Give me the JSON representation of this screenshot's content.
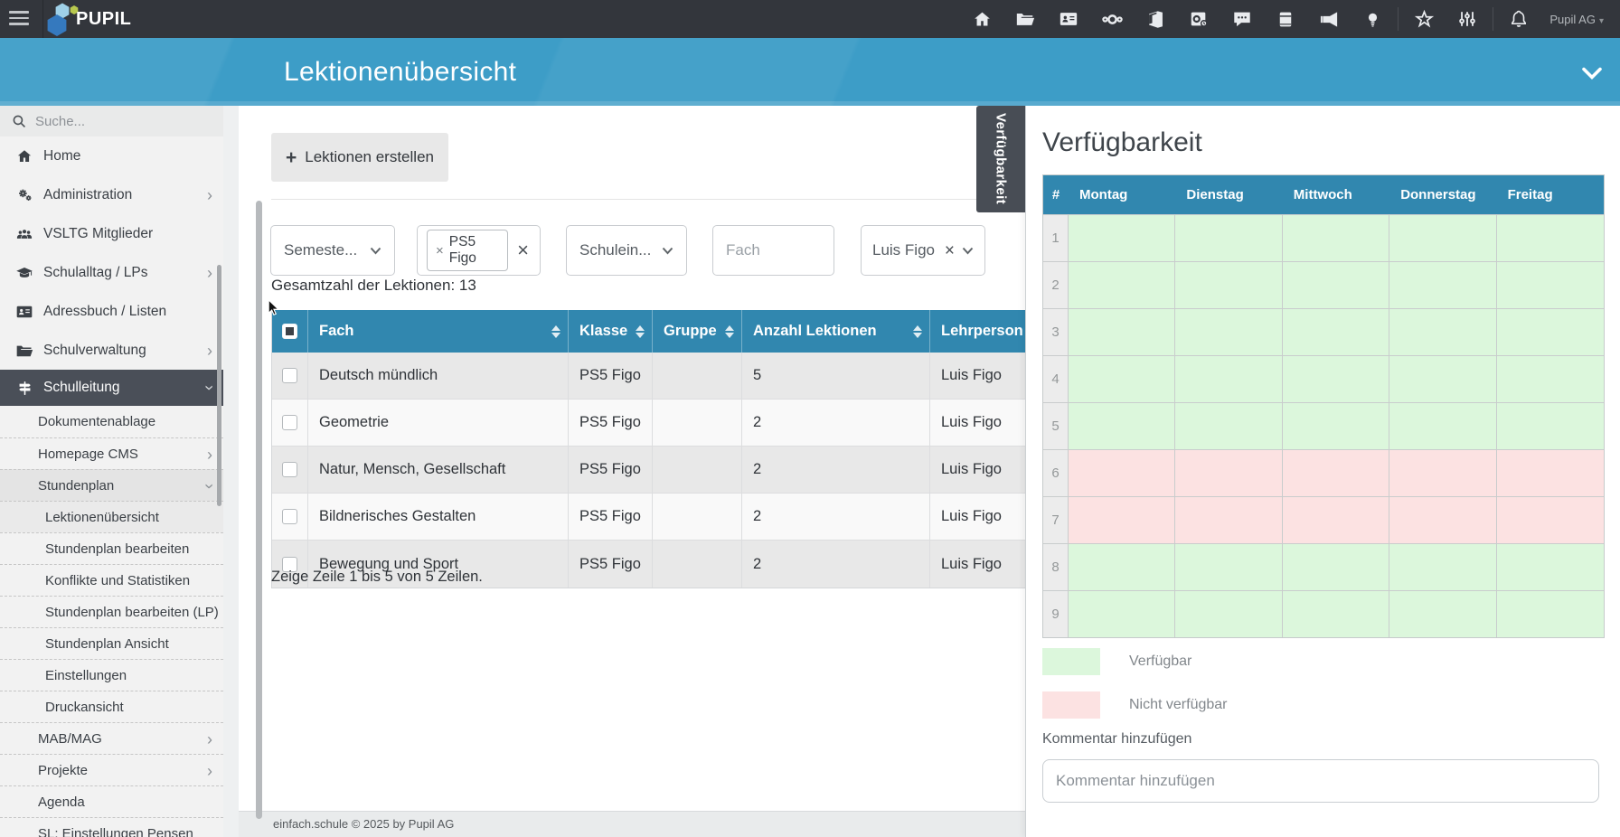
{
  "topbar": {
    "brand": "PUPIL",
    "account_label": "Pupil AG",
    "icons": [
      "hamburger-icon",
      "home-icon",
      "folder-icon",
      "contacts-card-icon",
      "cloud-icon",
      "office-icon",
      "outlook-icon",
      "chat-icon",
      "journal-icon",
      "megaphone-icon",
      "lightbulb-icon",
      "star-icon",
      "sliders-icon",
      "bell-icon"
    ]
  },
  "page_header": {
    "title": "Lektionenübersicht"
  },
  "sidebar": {
    "search_placeholder": "Suche...",
    "items": [
      {
        "label": "Home",
        "icon": "home-icon",
        "chevron": false
      },
      {
        "label": "Administration",
        "icon": "gears-icon",
        "chevron": true
      },
      {
        "label": "VSLTG Mitglieder",
        "icon": "users-icon",
        "chevron": false
      },
      {
        "label": "Schulalltag / LPs",
        "icon": "graduation-cap-icon",
        "chevron": true
      },
      {
        "label": "Adressbuch / Listen",
        "icon": "address-card-icon",
        "chevron": false
      },
      {
        "label": "Schulverwaltung",
        "icon": "folder-icon",
        "chevron": true
      },
      {
        "label": "Schulleitung",
        "icon": "signpost-icon",
        "chevron": true,
        "active": true,
        "expanded": true
      }
    ],
    "submenu": [
      {
        "label": "Dokumentenablage"
      },
      {
        "label": "Homepage CMS",
        "chevron": true
      },
      {
        "label": "Stundenplan",
        "chevron": true,
        "expanded": true,
        "highlight": true
      },
      {
        "label": "Lektionenübersicht",
        "level": 2,
        "active": true
      },
      {
        "label": "Stundenplan bearbeiten",
        "level": 2
      },
      {
        "label": "Konflikte und Statistiken",
        "level": 2
      },
      {
        "label": "Stundenplan bearbeiten (LP)",
        "level": 2
      },
      {
        "label": "Stundenplan Ansicht",
        "level": 2
      },
      {
        "label": "Einstellungen",
        "level": 2
      },
      {
        "label": "Druckansicht",
        "level": 2
      },
      {
        "label": "MAB/MAG",
        "chevron": true
      },
      {
        "label": "Projekte",
        "chevron": true
      },
      {
        "label": "Agenda"
      },
      {
        "label": "SL: Einstellungen Pensen"
      }
    ]
  },
  "toolbar": {
    "create_button": "Lektionen erstellen"
  },
  "filters": {
    "semester_label": "Semeste...",
    "klasse_tag": "PS5 Figo",
    "schuleinheit_label": "Schulein...",
    "fach_placeholder": "Fach",
    "lehrperson_value": "Luis Figo"
  },
  "lessons": {
    "total_label": "Gesamtzahl der Lektionen: 13",
    "columns": [
      "Fach",
      "Klasse",
      "Gruppe",
      "Anzahl Lektionen",
      "Lehrperson"
    ],
    "rows": [
      {
        "fach": "Deutsch mündlich",
        "klasse": "PS5 Figo",
        "gruppe": "",
        "anzahl": "5",
        "lehrperson": "Luis Figo"
      },
      {
        "fach": "Geometrie",
        "klasse": "PS5 Figo",
        "gruppe": "",
        "anzahl": "2",
        "lehrperson": "Luis Figo"
      },
      {
        "fach": "Natur, Mensch, Gesellschaft",
        "klasse": "PS5 Figo",
        "gruppe": "",
        "anzahl": "2",
        "lehrperson": "Luis Figo"
      },
      {
        "fach": "Bildnerisches Gestalten",
        "klasse": "PS5 Figo",
        "gruppe": "",
        "anzahl": "2",
        "lehrperson": "Luis Figo"
      },
      {
        "fach": "Bewegung und Sport",
        "klasse": "PS5 Figo",
        "gruppe": "",
        "anzahl": "2",
        "lehrperson": "Luis Figo"
      }
    ],
    "pagination_label": "Zeige Zeile 1 bis 5 von 5 Zeilen."
  },
  "availability": {
    "tab_label": "Verfügbarkeit",
    "title": "Verfügbarkeit",
    "columns": [
      "#",
      "Montag",
      "Dienstag",
      "Mittwoch",
      "Donnerstag",
      "Freitag"
    ],
    "rows": [
      {
        "num": "1",
        "status": "available"
      },
      {
        "num": "2",
        "status": "available"
      },
      {
        "num": "3",
        "status": "available"
      },
      {
        "num": "4",
        "status": "available"
      },
      {
        "num": "5",
        "status": "available"
      },
      {
        "num": "6",
        "status": "unavailable"
      },
      {
        "num": "7",
        "status": "unavailable"
      },
      {
        "num": "8",
        "status": "available"
      },
      {
        "num": "9",
        "status": "available"
      }
    ],
    "legend": [
      {
        "label": "Verfügbar",
        "status": "available"
      },
      {
        "label": "Nicht verfügbar",
        "status": "unavailable"
      }
    ],
    "comment_label": "Kommentar hinzufügen",
    "comment_placeholder": "Kommentar hinzufügen"
  },
  "footer": {
    "copyright": "einfach.schule © 2025 by Pupil AG"
  },
  "colors": {
    "topbar": "#33363c",
    "header_blue": "#3d9dc7",
    "table_header_blue": "#3187af",
    "active_item": "#4a4f58",
    "available_green": "#dcf7dc",
    "unavailable_red": "#fce2e2"
  }
}
